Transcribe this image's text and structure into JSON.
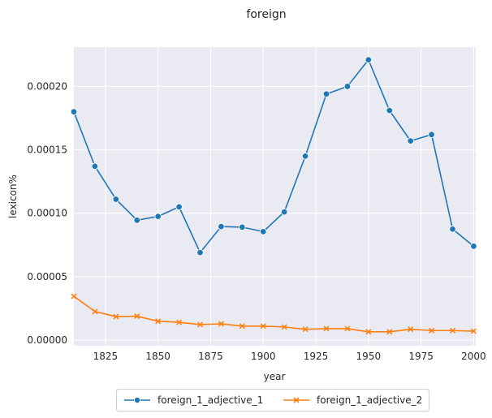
{
  "chart_data": {
    "type": "line",
    "title": "foreign",
    "xlabel": "year",
    "ylabel": "lexicon%",
    "xlim": [
      1810,
      2001
    ],
    "ylim": [
      -4.5e-06,
      0.000231
    ],
    "x_ticks": [
      1825,
      1850,
      1875,
      1900,
      1925,
      1950,
      1975,
      2000
    ],
    "x_tick_labels": [
      "1825",
      "1850",
      "1875",
      "1900",
      "1925",
      "1950",
      "1975",
      "2000"
    ],
    "y_ticks": [
      0,
      5e-05,
      0.0001,
      0.00015,
      0.0002
    ],
    "y_tick_labels": [
      "0.00000",
      "0.00005",
      "0.00010",
      "0.00015",
      "0.00020"
    ],
    "grid": true,
    "legend_position": "bottom-center",
    "x": [
      1810,
      1820,
      1830,
      1840,
      1850,
      1860,
      1870,
      1880,
      1890,
      1900,
      1910,
      1920,
      1930,
      1940,
      1950,
      1960,
      1970,
      1980,
      1990,
      2000
    ],
    "series": [
      {
        "name": "foreign_1_adjective_1",
        "color": "#1f77b4",
        "marker": "circle",
        "values": [
          0.00018,
          0.000137,
          0.000111,
          9.45e-05,
          9.75e-05,
          0.000105,
          6.9e-05,
          8.95e-05,
          8.9e-05,
          8.55e-05,
          0.000101,
          0.000145,
          0.000194,
          0.0002,
          0.000221,
          0.000181,
          0.000157,
          0.000162,
          8.75e-05,
          7.4e-05
        ]
      },
      {
        "name": "foreign_1_adjective_2",
        "color": "#ff7f0e",
        "marker": "x",
        "values": [
          3.45e-05,
          2.25e-05,
          1.85e-05,
          1.88e-05,
          1.48e-05,
          1.4e-05,
          1.22e-05,
          1.28e-05,
          1.1e-05,
          1.1e-05,
          1.03e-05,
          8.5e-06,
          9e-06,
          9e-06,
          6.5e-06,
          6.5e-06,
          8.5e-06,
          7.5e-06,
          7.5e-06,
          7e-06
        ]
      }
    ]
  }
}
